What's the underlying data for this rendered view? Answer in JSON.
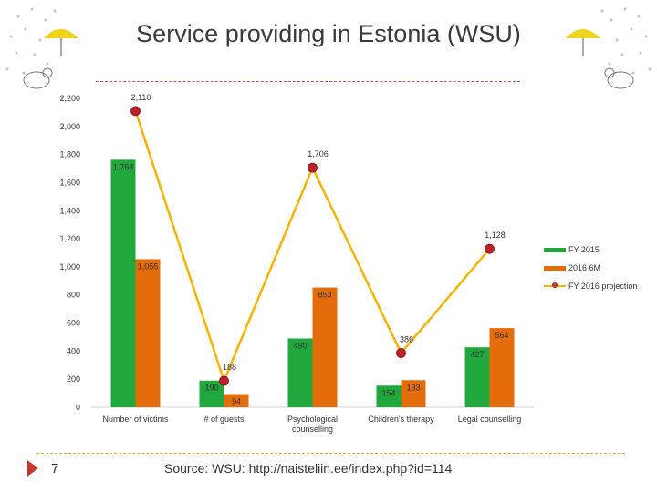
{
  "page": {
    "title": "Service providing in Estonia (WSU)",
    "page_number": "7",
    "source": "Source: WSU: http://naisteliin.ee/index.php?id=114"
  },
  "colors": {
    "fy2015": "#21a83c",
    "six_month_2016": "#e46c0a",
    "projection": "#f4b400",
    "marker": "#c0202a",
    "axis": "#d0d0d0"
  },
  "chart_data": {
    "type": "bar",
    "categories": [
      "Number of victims",
      "# of guests",
      "Psychological counselling",
      "Children's therapy",
      "Legal counselling"
    ],
    "series": [
      {
        "name": "FY 2015",
        "type": "bar",
        "values": [
          1763,
          190,
          490,
          154,
          427
        ]
      },
      {
        "name": "2016 6M",
        "type": "bar",
        "values": [
          1055,
          94,
          853,
          193,
          564
        ]
      },
      {
        "name": "FY 2016 projection",
        "type": "line",
        "values": [
          2110,
          188,
          1706,
          386,
          1128
        ]
      }
    ],
    "value_labels": {
      "fy2015": [
        "1,763",
        "190",
        "490",
        "154",
        "427"
      ],
      "six_month_2016": [
        "1,055",
        "94",
        "853",
        "193",
        "564"
      ],
      "projection": [
        "2,110",
        "188",
        "1,706",
        "386",
        "1,128"
      ]
    },
    "y_ticks": [
      "0",
      "200",
      "400",
      "600",
      "800",
      "1,000",
      "1,200",
      "1,400",
      "1,600",
      "1,800",
      "2,000",
      "2,200"
    ],
    "ylim": [
      0,
      2200
    ],
    "grid": false,
    "legend": "right"
  }
}
